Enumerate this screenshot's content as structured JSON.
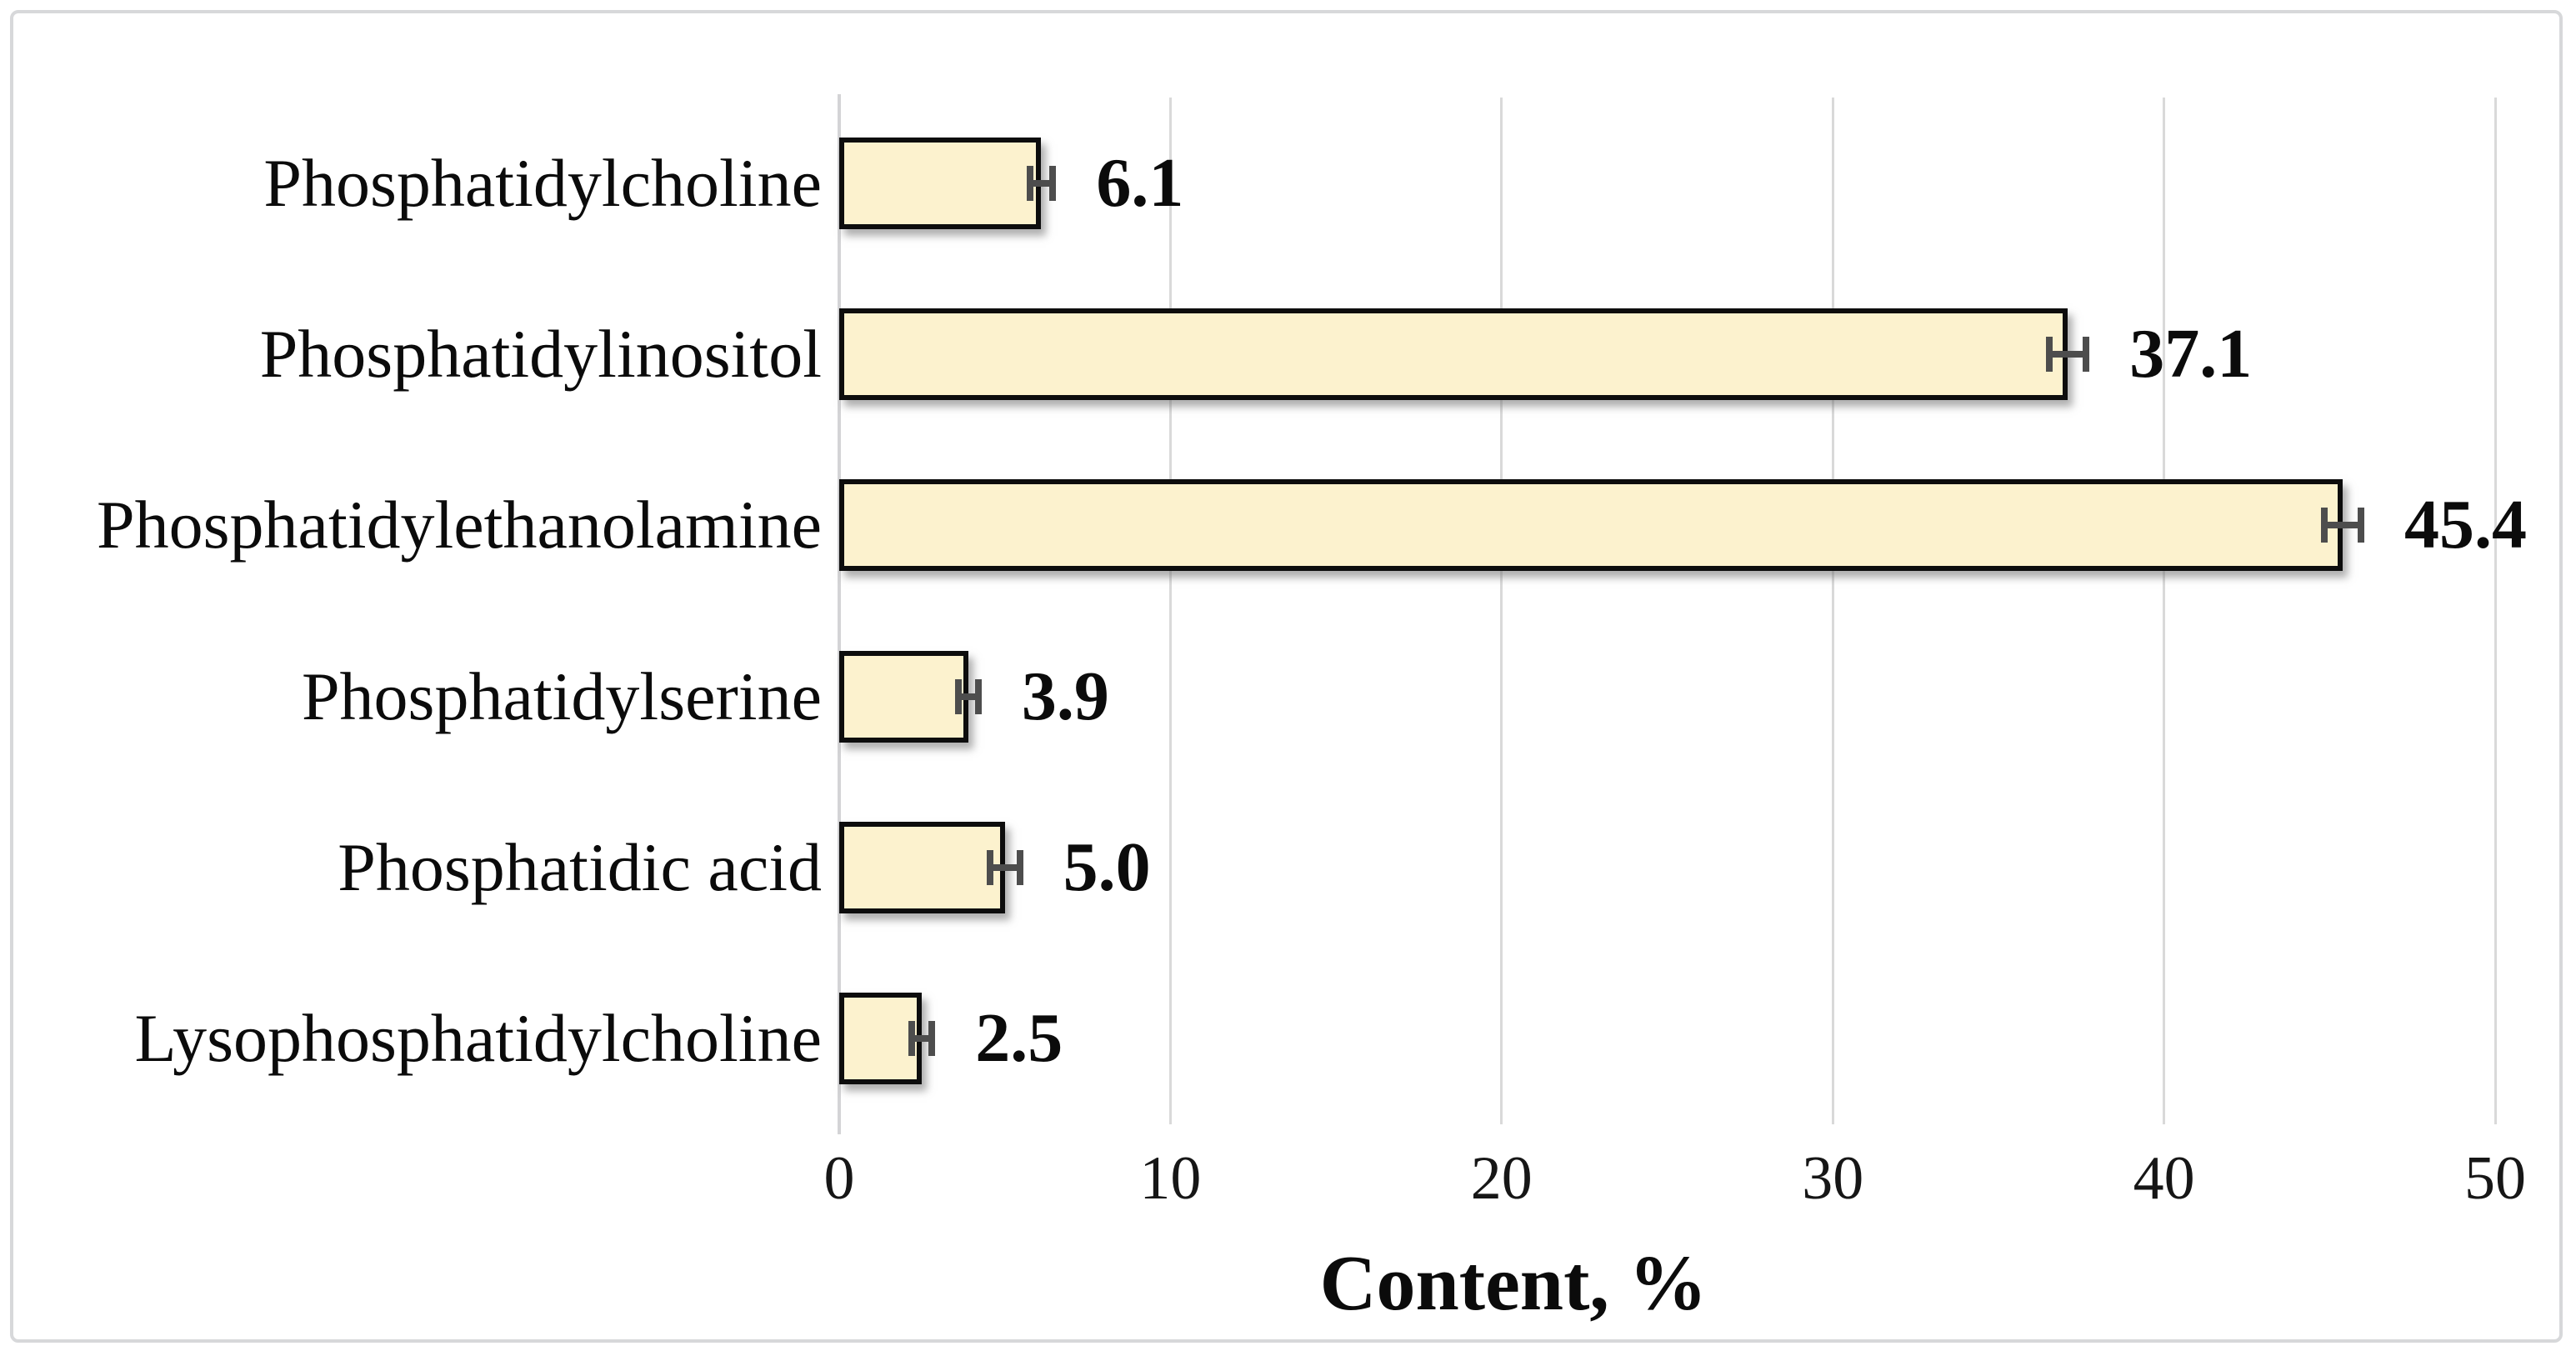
{
  "figure": {
    "background": "#FFFFFF",
    "frame_border_color": "#D7D8DA"
  },
  "chart_data": {
    "type": "bar",
    "orientation": "horizontal",
    "categories": [
      "Phosphatidylcholine",
      "Phosphatidylinositol",
      "Phosphatidylethanolamine",
      "Phosphatidylserine",
      "Phosphatidic acid",
      "Lysophosphatidylcholine"
    ],
    "values": [
      6.1,
      37.1,
      45.4,
      3.9,
      5.0,
      2.5
    ],
    "value_labels": [
      "6.1",
      "37.1",
      "45.4",
      "3.9",
      "5.0",
      "2.5"
    ],
    "error_bars": [
      0.35,
      0.55,
      0.55,
      0.3,
      0.45,
      0.3
    ],
    "xlabel": "Content, %",
    "ylabel": "",
    "xlim": [
      0,
      50
    ],
    "xticks": [
      0,
      10,
      20,
      30,
      40,
      50
    ],
    "grid": true,
    "legend": false,
    "colors": {
      "bar_fill": "#FCF2CE",
      "bar_border": "#0D0D0D",
      "gridline": "#D9D9D9",
      "axis_line": "#D4D4D6",
      "error_bar": "#4D4D4D",
      "text": "#0B0B0B"
    }
  }
}
